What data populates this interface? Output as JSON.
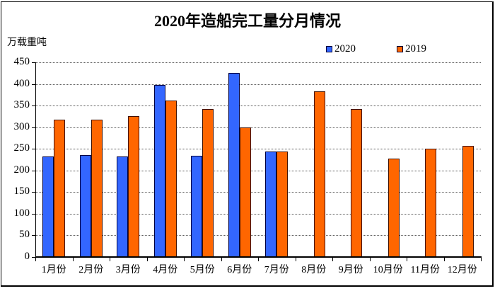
{
  "chart": {
    "title": "2020年造船完工量分月情况",
    "unit_label": "万载重吨",
    "legend": [
      {
        "label": "2020",
        "color": "#3366FF"
      },
      {
        "label": "2019",
        "color": "#FF6600"
      }
    ]
  },
  "chart_data": {
    "type": "bar",
    "title": "2020年造船完工量分月情况",
    "xlabel": "",
    "ylabel": "万载重吨",
    "categories": [
      "1月份",
      "2月份",
      "3月份",
      "4月份",
      "5月份",
      "6月份",
      "7月份",
      "8月份",
      "9月份",
      "10月份",
      "11月份",
      "12月份"
    ],
    "series": [
      {
        "name": "2020",
        "color": "#3366FF",
        "values": [
          233,
          235,
          233,
          398,
          234,
          425,
          244,
          null,
          null,
          null,
          null,
          null
        ]
      },
      {
        "name": "2019",
        "color": "#FF6600",
        "values": [
          317,
          317,
          325,
          362,
          342,
          299,
          244,
          383,
          342,
          227,
          250,
          257
        ]
      }
    ],
    "ylim": [
      0,
      450
    ],
    "yticks": [
      0,
      50,
      100,
      150,
      200,
      250,
      300,
      350,
      400,
      450
    ],
    "grid": true,
    "gridline_style": "dotted",
    "legend_position": "top-right"
  }
}
